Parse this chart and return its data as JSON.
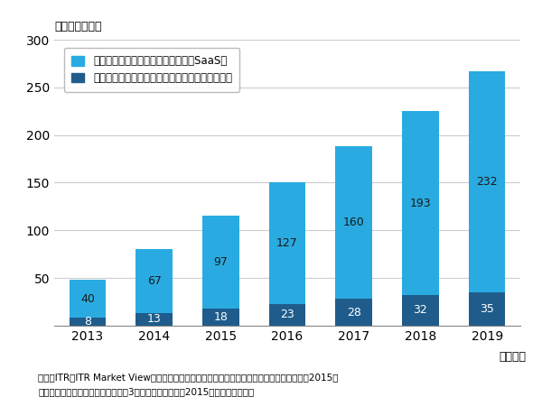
{
  "years": [
    "2013",
    "2014",
    "2015",
    "2016",
    "2017",
    "2018",
    "2019"
  ],
  "saas_values": [
    40,
    67,
    97,
    127,
    160,
    193,
    232
  ],
  "package_values": [
    8,
    13,
    18,
    23,
    28,
    32,
    35
  ],
  "saas_color": "#29ABE2",
  "package_color": "#1F5C8B",
  "saas_label": "エンタープライズ・モバイル管理（SaaS）",
  "package_label": "エンタープライズ・モバイル管理（パッケージ）",
  "unit_label": "（単位：億円）",
  "xlabel": "（年度）",
  "ylim": [
    0,
    300
  ],
  "yticks": [
    0,
    50,
    100,
    150,
    200,
    250,
    300
  ],
  "footnote1": "出典：ITR『ITR Market View：エンタープライズ・モバイル管理／スマートアプリ開発市場2015』",
  "footnote2": "＊ベンダーの売上金額を対象とし，3月期ベースで换算。2015年度以降は予測値",
  "bar_width": 0.55,
  "label_color_saas": "#1a1a1a",
  "label_color_pkg": "white"
}
